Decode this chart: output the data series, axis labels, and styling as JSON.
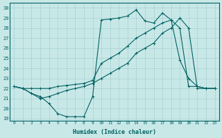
{
  "xlabel": "Humidex (Indice chaleur)",
  "bg_color": "#c8e8e8",
  "line_color": "#006060",
  "grid_color": "#b0d0d0",
  "xlim": [
    -0.5,
    23.5
  ],
  "ylim": [
    18.8,
    30.5
  ],
  "yticks": [
    19,
    20,
    21,
    22,
    23,
    24,
    25,
    26,
    27,
    28,
    29,
    30
  ],
  "xticks": [
    0,
    1,
    2,
    3,
    4,
    5,
    6,
    7,
    8,
    9,
    10,
    11,
    12,
    13,
    14,
    15,
    16,
    17,
    18,
    19,
    20,
    21,
    22,
    23
  ],
  "line1_x": [
    0,
    1,
    2,
    3,
    4,
    5,
    6,
    7,
    8,
    9,
    10,
    11,
    12,
    13,
    14,
    15,
    16,
    17,
    18,
    19,
    20,
    21,
    22,
    23
  ],
  "line1_y": [
    22.2,
    22.0,
    21.5,
    21.2,
    20.5,
    19.5,
    19.2,
    19.2,
    19.2,
    21.2,
    28.8,
    28.9,
    29.0,
    29.2,
    29.8,
    28.7,
    28.5,
    29.5,
    28.8,
    24.8,
    23.0,
    22.2,
    22.0,
    22.0
  ],
  "line2_x": [
    0,
    1,
    2,
    3,
    4,
    5,
    6,
    7,
    8,
    9,
    10,
    11,
    12,
    13,
    14,
    15,
    16,
    17,
    18,
    19,
    20,
    21,
    22,
    23
  ],
  "line2_y": [
    22.2,
    22.0,
    22.0,
    22.0,
    22.0,
    22.2,
    22.3,
    22.4,
    22.5,
    22.8,
    24.5,
    25.0,
    25.5,
    26.2,
    27.0,
    27.5,
    28.0,
    28.5,
    28.8,
    28.0,
    22.2,
    22.2,
    22.0,
    22.0
  ],
  "line3_x": [
    0,
    1,
    2,
    3,
    4,
    5,
    6,
    7,
    8,
    9,
    10,
    11,
    12,
    13,
    14,
    15,
    16,
    17,
    18,
    19,
    20,
    21,
    22,
    23
  ],
  "line3_y": [
    22.2,
    22.0,
    21.5,
    21.0,
    21.2,
    21.5,
    21.8,
    22.0,
    22.2,
    22.5,
    23.0,
    23.5,
    24.0,
    24.5,
    25.5,
    26.0,
    26.5,
    27.5,
    28.0,
    29.0,
    28.0,
    22.0,
    22.0,
    22.0
  ]
}
